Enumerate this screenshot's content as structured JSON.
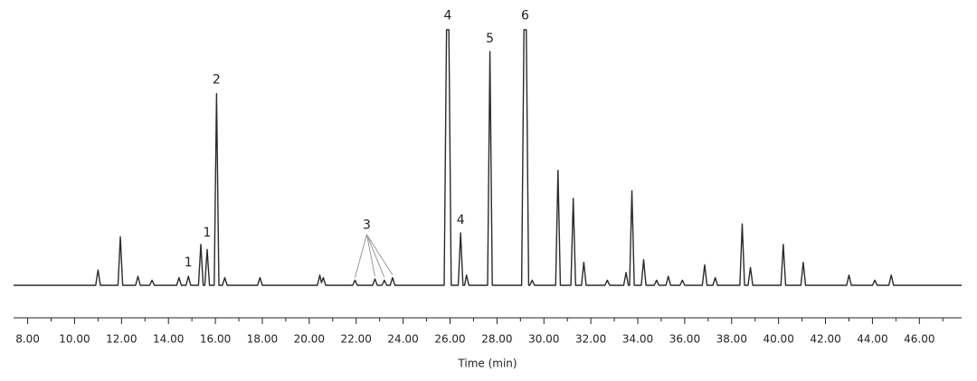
{
  "chart_data": {
    "type": "line",
    "xlabel": "Time (min)",
    "color": "#2b2b2b",
    "xlim": [
      7.4,
      47.8
    ],
    "ylim": [
      0,
      100
    ],
    "xticks": [
      {
        "value": 8,
        "label": "8.00"
      },
      {
        "value": 10,
        "label": "10.00"
      },
      {
        "value": 12,
        "label": "12.00"
      },
      {
        "value": 14,
        "label": "14.00"
      },
      {
        "value": 16,
        "label": "16.00"
      },
      {
        "value": 18,
        "label": "18.00"
      },
      {
        "value": 20,
        "label": "20.00"
      },
      {
        "value": 22,
        "label": "22.00"
      },
      {
        "value": 24,
        "label": "24.00"
      },
      {
        "value": 26,
        "label": "26.00"
      },
      {
        "value": 28,
        "label": "28.00"
      },
      {
        "value": 30,
        "label": "30.00"
      },
      {
        "value": 32,
        "label": "32.00"
      },
      {
        "value": 34,
        "label": "34.00"
      },
      {
        "value": 36,
        "label": "36.00"
      },
      {
        "value": 38,
        "label": "38.00"
      },
      {
        "value": 40,
        "label": "40.00"
      },
      {
        "value": 42,
        "label": "42.00"
      },
      {
        "value": 44,
        "label": "44.00"
      },
      {
        "value": 46,
        "label": "46.00"
      }
    ],
    "xminorticks": [
      9,
      11,
      13,
      15,
      17,
      19,
      21,
      23,
      25,
      27,
      29,
      31,
      33,
      35,
      37,
      39,
      41,
      43,
      45,
      47
    ],
    "x": [
      7.4,
      10.9,
      11.0,
      11.1,
      11.85,
      11.95,
      12.05,
      12.6,
      12.7,
      12.8,
      13.2,
      13.3,
      13.4,
      14.35,
      14.45,
      14.55,
      14.75,
      14.85,
      14.95,
      15.28,
      15.38,
      15.48,
      15.55,
      15.65,
      15.75,
      15.95,
      16.05,
      16.15,
      16.3,
      16.4,
      16.5,
      17.8,
      17.9,
      18.0,
      20.35,
      20.45,
      20.52,
      20.6,
      20.7,
      21.85,
      21.95,
      22.05,
      22.7,
      22.8,
      22.9,
      23.1,
      23.2,
      23.3,
      23.45,
      23.55,
      23.65,
      25.75,
      25.85,
      25.95,
      26.05,
      26.35,
      26.45,
      26.55,
      26.62,
      26.7,
      26.8,
      27.6,
      27.7,
      27.8,
      29.05,
      29.15,
      29.25,
      29.35,
      29.4,
      29.5,
      29.6,
      30.5,
      30.6,
      30.7,
      31.15,
      31.25,
      31.35,
      31.6,
      31.7,
      31.8,
      32.6,
      32.7,
      32.8,
      33.4,
      33.5,
      33.6,
      33.65,
      33.75,
      33.85,
      34.15,
      34.25,
      34.35,
      34.7,
      34.8,
      34.9,
      35.2,
      35.3,
      35.4,
      35.8,
      35.9,
      36.0,
      36.75,
      36.85,
      36.95,
      37.2,
      37.3,
      37.4,
      38.35,
      38.45,
      38.55,
      38.7,
      38.8,
      38.9,
      40.1,
      40.2,
      40.3,
      40.95,
      41.05,
      41.15,
      42.9,
      43.0,
      43.1,
      44.0,
      44.1,
      44.2,
      44.7,
      44.8,
      44.9,
      47.8
    ],
    "values": [
      0,
      0,
      6,
      0,
      0,
      19,
      0,
      0,
      3.5,
      0,
      0,
      2,
      0,
      0,
      3,
      0,
      0,
      3.5,
      0,
      0,
      16,
      0,
      0,
      14,
      0,
      0,
      75,
      0,
      0,
      3,
      0,
      0,
      3,
      0,
      0,
      4,
      1,
      3,
      0,
      0,
      2,
      0,
      0,
      2.5,
      0,
      0,
      2,
      0,
      0,
      3,
      0,
      0,
      100,
      100,
      0,
      0,
      20.5,
      0,
      0,
      4,
      0,
      0,
      91.5,
      0,
      0,
      100,
      100,
      0,
      0,
      2,
      0,
      0,
      45,
      0,
      0,
      34,
      0,
      0,
      9,
      0,
      0,
      2,
      0,
      0,
      5,
      0,
      0,
      37,
      0,
      0,
      10,
      0,
      0,
      2,
      0,
      0,
      3.5,
      0,
      0,
      2,
      0,
      0,
      8,
      0,
      0,
      3,
      0,
      0,
      24,
      0,
      0,
      7,
      0,
      0,
      16,
      0,
      0,
      9,
      0,
      0,
      4,
      0,
      0,
      2,
      0,
      0,
      4,
      0,
      0
    ],
    "annotations": [
      {
        "text": "1",
        "x": 14.85,
        "y": 7.5
      },
      {
        "text": "1",
        "x": 15.65,
        "y": 19
      },
      {
        "text": "2",
        "x": 16.05,
        "y": 79
      },
      {
        "text": "3",
        "x": 22.45,
        "y": 22,
        "points": [
          [
            21.95,
            2
          ],
          [
            22.8,
            2.5
          ],
          [
            23.2,
            2
          ],
          [
            23.55,
            3
          ]
        ]
      },
      {
        "text": "4",
        "x": 25.9,
        "y": 104
      },
      {
        "text": "4",
        "x": 26.45,
        "y": 24
      },
      {
        "text": "5",
        "x": 27.7,
        "y": 95
      },
      {
        "text": "6",
        "x": 29.2,
        "y": 104
      }
    ]
  }
}
